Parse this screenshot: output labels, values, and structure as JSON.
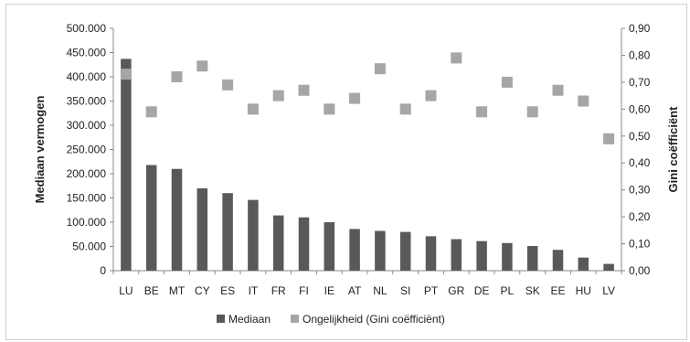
{
  "chart_data": {
    "type": "bar",
    "categories": [
      "LU",
      "BE",
      "MT",
      "CY",
      "ES",
      "IT",
      "FR",
      "FI",
      "IE",
      "AT",
      "NL",
      "SI",
      "PT",
      "GR",
      "DE",
      "PL",
      "SK",
      "EE",
      "HU",
      "LV"
    ],
    "series": [
      {
        "name": "Mediaan",
        "type": "bar",
        "axis": "left",
        "color": "#595959",
        "values": [
          437000,
          218000,
          210000,
          170000,
          160000,
          146000,
          114000,
          110000,
          100000,
          86000,
          82000,
          80000,
          71000,
          65000,
          61000,
          57000,
          51000,
          43000,
          27000,
          14000
        ]
      },
      {
        "name": "Ongelijkheid (Gini coëfficiënt)",
        "type": "scatter",
        "axis": "right",
        "color": "#a6a6a6",
        "values": [
          0.73,
          0.59,
          0.72,
          0.76,
          0.69,
          0.6,
          0.65,
          0.67,
          0.6,
          0.64,
          0.75,
          0.6,
          0.65,
          0.79,
          0.59,
          0.7,
          0.59,
          0.67,
          0.63,
          0.49
        ]
      }
    ],
    "ylabel": "Mediaan vermogen",
    "y2label": "Gini coëfficiënt",
    "ylim": [
      0,
      500000
    ],
    "y2lim": [
      0,
      0.9
    ],
    "yticks": [
      "0",
      "50.000",
      "100.000",
      "150.000",
      "200.000",
      "250.000",
      "300.000",
      "350.000",
      "400.000",
      "450.000",
      "500.000"
    ],
    "y2ticks": [
      "0,00",
      "0,10",
      "0,20",
      "0,30",
      "0,40",
      "0,50",
      "0,60",
      "0,70",
      "0,80",
      "0,90"
    ],
    "grid": false,
    "legend_position": "bottom"
  }
}
